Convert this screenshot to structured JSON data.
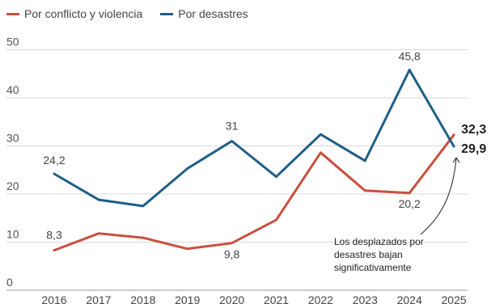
{
  "chart_data": {
    "type": "line",
    "categories": [
      "2016",
      "2017",
      "2018",
      "2019",
      "2020",
      "2021",
      "2022",
      "2023",
      "2024",
      "2025"
    ],
    "series": [
      {
        "name": "Por conflicto y violencia",
        "color": "#c8503f",
        "values": [
          8.3,
          11.8,
          10.9,
          8.6,
          9.8,
          14.6,
          28.6,
          20.7,
          20.2,
          32.3
        ]
      },
      {
        "name": "Por desastres",
        "color": "#1f5f86",
        "values": [
          24.2,
          18.8,
          17.5,
          25.3,
          31,
          23.6,
          32.4,
          26.9,
          45.8,
          29.9
        ]
      }
    ],
    "ylim": [
      0,
      50
    ],
    "yticks": [
      "0",
      "10",
      "20",
      "30",
      "40",
      "50"
    ],
    "grid": true,
    "legend": "top-left",
    "data_labels": [
      {
        "series": 1,
        "index": 0,
        "text": "24,2"
      },
      {
        "series": 0,
        "index": 0,
        "text": "8,3"
      },
      {
        "series": 1,
        "index": 4,
        "text": "31"
      },
      {
        "series": 0,
        "index": 4,
        "text": "9,8"
      },
      {
        "series": 1,
        "index": 8,
        "text": "45,8"
      },
      {
        "series": 0,
        "index": 8,
        "text": "20,2"
      },
      {
        "series": 0,
        "index": 9,
        "text": "32,3",
        "bold": true
      },
      {
        "series": 1,
        "index": 9,
        "text": "29,9",
        "bold": true
      }
    ],
    "annotation": [
      "Los desplazados por",
      "desastres bajan",
      "significativamente"
    ]
  }
}
